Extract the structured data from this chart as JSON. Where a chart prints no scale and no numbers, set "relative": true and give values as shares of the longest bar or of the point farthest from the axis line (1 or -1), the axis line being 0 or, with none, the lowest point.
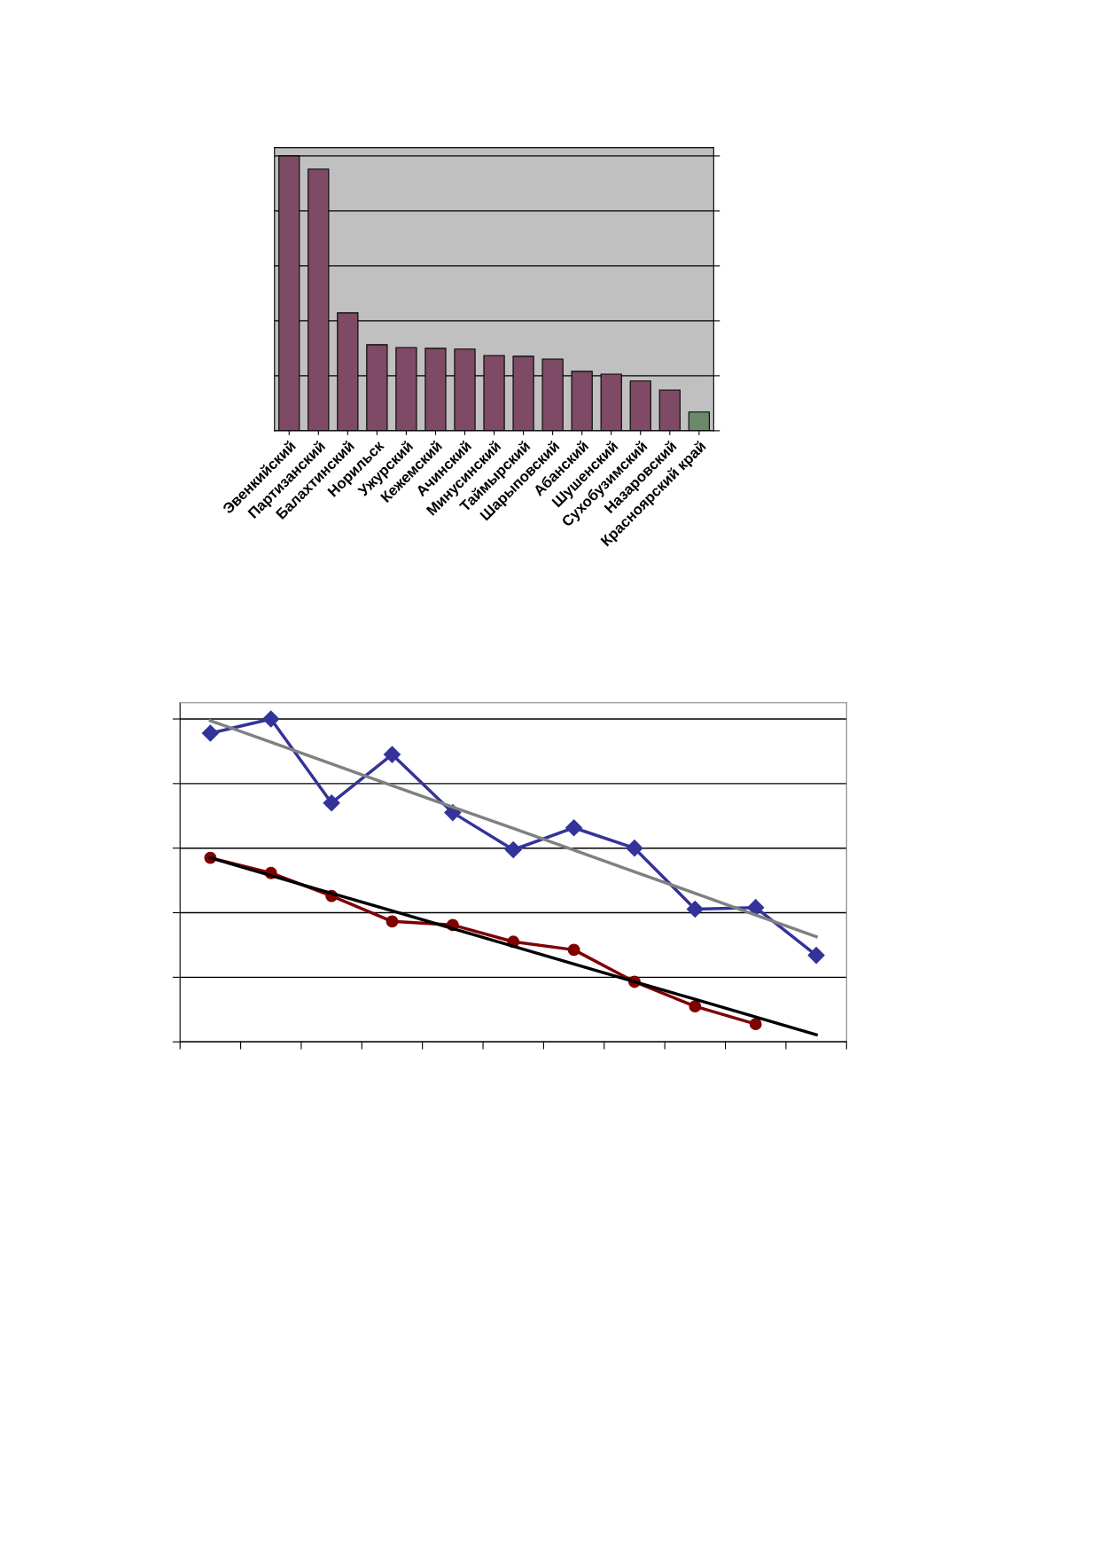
{
  "chart_data": [
    {
      "type": "bar",
      "relative": true,
      "grid": "y",
      "categories": [
        "Эвенкийский",
        "Партизанский",
        "Балахтинский",
        "Норильск",
        "Ужурский",
        "Кежемский",
        "Ачинский",
        "Минусинский",
        "Таймырский",
        "Шарыповский",
        "Абанский",
        "Шушенский",
        "Сухобузимский",
        "Назаровский",
        "Красноярский край"
      ],
      "values": [
        1,
        0.952,
        0.429,
        0.313,
        0.303,
        0.3,
        0.297,
        0.274,
        0.271,
        0.261,
        0.216,
        0.206,
        0.181,
        0.148,
        0.068
      ],
      "colors": [
        "#7f4a66",
        "#7f4a66",
        "#7f4a66",
        "#7f4a66",
        "#7f4a66",
        "#7f4a66",
        "#7f4a66",
        "#7f4a66",
        "#7f4a66",
        "#7f4a66",
        "#7f4a66",
        "#7f4a66",
        "#7f4a66",
        "#7f4a66",
        "#6a8a6a"
      ]
    },
    {
      "type": "line",
      "relative": true,
      "grid": "y",
      "categories": [
        null,
        null,
        null,
        null,
        null,
        null,
        null,
        null,
        null,
        null,
        null
      ],
      "series": [
        {
          "color": "#800000",
          "marker": "circle",
          "values": [
            0.57,
            0.523,
            0.452,
            0.373,
            0.362,
            0.31,
            0.285,
            0.186,
            0.11,
            0.055,
            null
          ]
        },
        {
          "color": "#333399",
          "marker": "diamond",
          "values": [
            0.956,
            1,
            0.74,
            0.89,
            0.71,
            0.595,
            0.663,
            0.6,
            0.411,
            0.416,
            0.268
          ]
        },
        {
          "color": "#000000",
          "marker": "none",
          "values": [
            0.57,
            0.515,
            0.46,
            0.406,
            0.351,
            0.296,
            0.241,
            0.186,
            0.132,
            0.077,
            0.022
          ]
        },
        {
          "color": "#808080",
          "marker": "none",
          "values": [
            0.995,
            0.928,
            0.861,
            0.794,
            0.727,
            0.661,
            0.594,
            0.527,
            0.46,
            0.393,
            0.326
          ]
        }
      ]
    }
  ]
}
